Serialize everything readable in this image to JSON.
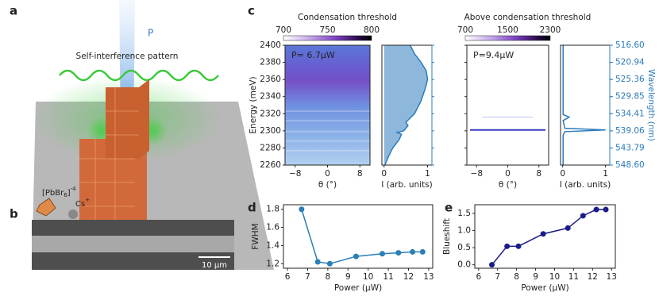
{
  "panel_labels": [
    "a",
    "b",
    "c",
    "d",
    "e"
  ],
  "panel_a": {
    "pump": "P",
    "pattern": "Self-interference pattern",
    "ion": "[PbBr",
    "ion_sub": "6",
    "ion_close": "]",
    "ion_sup": "-4",
    "cation": "Cs",
    "cation_sup": "+"
  },
  "panel_b": {
    "scale_bar": "10 μm"
  },
  "chart_data": [
    {
      "type": "heatmap",
      "title": "Condensation threshold",
      "annotation": "P= 6.7μW",
      "colorbar_ticks": [
        700,
        750,
        800
      ],
      "xlabel": "θ (°)",
      "ylabel": "Energy (meV)",
      "xlim": [
        -10.5,
        10.5
      ],
      "xticks": [
        {
          "value": -8,
          "label": "−8"
        },
        0,
        8
      ],
      "ylim": [
        2260,
        2400
      ],
      "yticks": [
        2260,
        2280,
        2300,
        2320,
        2340,
        2360,
        2380,
        2400
      ]
    },
    {
      "type": "spectrum",
      "color": "#2b7bba",
      "fill_color": "#8db8dc",
      "ylabel": "I (arb. units)",
      "x": [
        2260,
        2270,
        2280,
        2290,
        2296,
        2298,
        2300,
        2306,
        2310,
        2320,
        2335,
        2350,
        2360,
        2370,
        2380,
        2390,
        2400
      ],
      "values": [
        0.02,
        0.1,
        0.2,
        0.35,
        0.4,
        0.3,
        0.45,
        0.55,
        0.5,
        0.7,
        0.85,
        0.95,
        1.0,
        0.97,
        0.85,
        0.7,
        0.6
      ],
      "xlim": [
        2260,
        2400
      ],
      "xticks": [
        2260,
        2280,
        2300,
        2320,
        2340,
        2360,
        2380,
        2400
      ],
      "ylim": [
        -0.05,
        1.1
      ],
      "yticks": [
        0,
        1
      ]
    },
    {
      "type": "heatmap",
      "title": "Above condensation threshold",
      "annotation": "P=9.4μW",
      "colorbar_ticks": [
        700,
        1500,
        2300
      ],
      "xlabel": "θ (°)",
      "xlim": [
        -10.5,
        10.5
      ],
      "xticks": [
        {
          "value": -8,
          "label": "−8"
        },
        0,
        8
      ],
      "ylim": [
        2260,
        2400
      ],
      "yticks": [
        2260,
        2280,
        2300,
        2320,
        2340,
        2360,
        2380,
        2400
      ]
    },
    {
      "type": "spectrum",
      "color": "#2b7bba",
      "ylabel": "I (arb. units)",
      "x": [
        2260,
        2295,
        2299,
        2301,
        2303,
        2312,
        2316,
        2319,
        2400
      ],
      "values": [
        0.01,
        0.01,
        0.05,
        1.0,
        0.05,
        0.01,
        0.15,
        0.01,
        0.01
      ],
      "xlim": [
        2260,
        2400
      ],
      "xticks": [
        2260,
        2280,
        2300,
        2320,
        2340,
        2360,
        2380,
        2400
      ],
      "ylim": [
        -0.05,
        1.1
      ],
      "yticks": [
        0,
        1
      ],
      "y2label": "Wavelength (nm)",
      "y2lim": [
        548.6,
        516.6
      ],
      "y2ticks": [
        {
          "value": 516.6,
          "label": "516.60"
        },
        520.94,
        525.36,
        529.85,
        534.41,
        539.06,
        543.79,
        {
          "value": 548.6,
          "label": "548.60"
        }
      ]
    },
    {
      "type": "line",
      "color": "#2a7fb5",
      "xlabel": "Power (μW)",
      "ylabel": "FWHM",
      "x": [
        6.7,
        7.5,
        8.1,
        9.4,
        10.7,
        11.5,
        12.2,
        12.7
      ],
      "values": [
        1.8,
        1.22,
        1.2,
        1.28,
        1.31,
        1.32,
        1.33,
        1.33
      ],
      "xlim": [
        5.8,
        13.2
      ],
      "xticks": [
        6,
        7,
        8,
        9,
        10,
        11,
        12,
        13
      ],
      "ylim": [
        1.15,
        1.85
      ],
      "yticks": [
        1.2,
        1.4,
        1.6,
        1.8
      ]
    },
    {
      "type": "line",
      "color": "#1b1b8a",
      "xlabel": "Power (μW)",
      "ylabel": "Blueshift",
      "x": [
        6.7,
        7.5,
        8.1,
        9.4,
        10.7,
        11.5,
        12.2,
        12.7
      ],
      "values": [
        0,
        0.54,
        0.54,
        0.9,
        1.07,
        1.43,
        1.61,
        1.61
      ],
      "xlim": [
        5.8,
        13.2
      ],
      "xticks": [
        6,
        7,
        8,
        9,
        10,
        11,
        12,
        13
      ],
      "ylim": [
        -0.1,
        1.75
      ],
      "yticks": [
        {
          "value": 0,
          "label": "0.0"
        },
        0.5,
        {
          "value": 1,
          "label": "1.0"
        },
        1.5
      ]
    }
  ]
}
